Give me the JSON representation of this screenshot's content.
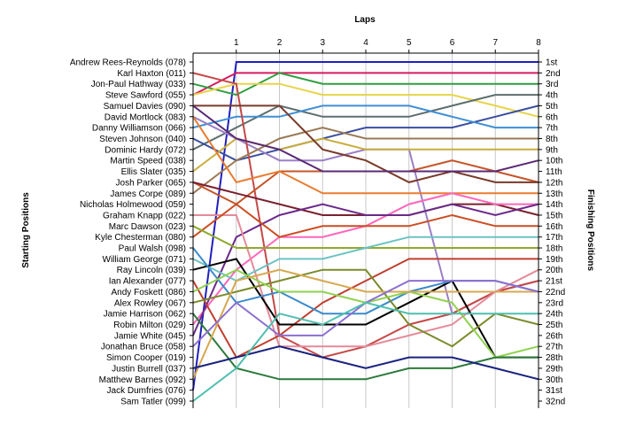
{
  "chart_data": {
    "type": "line",
    "title": "",
    "x_title": "Laps",
    "y_title_left": "Starting Positions",
    "y_title_right": "Finishing Positions",
    "laps": [
      0,
      1,
      2,
      3,
      4,
      5,
      6,
      7,
      8
    ],
    "x_tick_labels": [
      "1",
      "2",
      "3",
      "4",
      "5",
      "6",
      "7",
      "8"
    ],
    "positions_count": 32,
    "starting_labels": [
      "Andrew Rees-Reynolds (078)",
      "Karl Haxton (011)",
      "Jon-Paul Hathway (033)",
      "Steve Sawford (055)",
      "Samuel Davies (090)",
      "David Mortlock (083)",
      "Danny Williamson (066)",
      "Steven Johnson (040)",
      "Dominic Hardy (072)",
      "Martin Speed (038)",
      "Ellis Slater (035)",
      "Josh Parker (065)",
      "James Corpe (089)",
      "Nicholas Holmewood (059)",
      "Graham Knapp (022)",
      "Marc Dawson (023)",
      "Kyle Chesterman (080)",
      "Paul Walsh (098)",
      "William George (071)",
      "Ray Lincoln (039)",
      "Ian Alexander (077)",
      "Andy Foskett (086)",
      "Alex Rowley (067)",
      "Jamie Harrison (062)",
      "Robin Milton (029)",
      "Jamie White (045)",
      "Jonathan Bruce (058)",
      "Simon Cooper (019)",
      "Justin Burrell (037)",
      "Matthew Barnes (092)",
      "Jack Dumfries (076)",
      "Sam Tatler (099)"
    ],
    "finishing_labels": [
      "1st",
      "2nd",
      "3rd",
      "4th",
      "5th",
      "6th",
      "7th",
      "8th",
      "9th",
      "10th",
      "11th",
      "12th",
      "13th",
      "14th",
      "15th",
      "16th",
      "17th",
      "18th",
      "19th",
      "20th",
      "21st",
      "22nd",
      "23rd",
      "24th",
      "25th",
      "26th",
      "27th",
      "28th",
      "29th",
      "30th",
      "31st",
      "32nd"
    ],
    "series": [
      {
        "color": "#1f1fbf",
        "values": [
          31,
          1,
          1,
          1,
          1,
          1,
          1,
          1,
          1
        ]
      },
      {
        "color": "#d81b60",
        "values": [
          4,
          2,
          2,
          2,
          2,
          2,
          2,
          2,
          2
        ]
      },
      {
        "color": "#2e9e3f",
        "values": [
          3,
          4,
          2,
          3,
          3,
          3,
          3,
          3,
          3
        ]
      },
      {
        "color": "#e8d44a",
        "values": [
          4,
          3,
          3,
          4,
          4,
          4,
          4,
          5,
          6
        ]
      },
      {
        "color": "#5c6e6e",
        "values": [
          9,
          7,
          5,
          6,
          6,
          6,
          5,
          4,
          4
        ]
      },
      {
        "color": "#3a4ea0",
        "values": [
          8,
          10,
          9,
          8,
          7,
          7,
          7,
          6,
          5
        ]
      },
      {
        "color": "#3f8fd6",
        "values": [
          7,
          6,
          6,
          5,
          5,
          5,
          6,
          7,
          7
        ]
      },
      {
        "color": "#9b7fc6",
        "values": [
          6,
          8,
          10,
          10,
          9,
          9,
          24,
          22,
          21
        ]
      },
      {
        "color": "#c64848",
        "values": [
          2,
          3,
          26,
          28,
          27,
          25,
          24,
          22,
          21
        ]
      },
      {
        "color": "#c9ad3c",
        "values": [
          11,
          8,
          9,
          8,
          9,
          9,
          9,
          9,
          9
        ]
      },
      {
        "color": "#9a7a55",
        "values": [
          13,
          10,
          8,
          7,
          8,
          8,
          8,
          8,
          8
        ]
      },
      {
        "color": "#c5552a",
        "values": [
          12,
          14,
          11,
          11,
          11,
          11,
          10,
          11,
          12
        ]
      },
      {
        "color": "#7a3a2a",
        "values": [
          5,
          5,
          5,
          9,
          10,
          12,
          11,
          12,
          12
        ]
      },
      {
        "color": "#e87c2f",
        "values": [
          6,
          12,
          11,
          13,
          13,
          13,
          13,
          13,
          13
        ]
      },
      {
        "color": "#5a2a75",
        "values": [
          5,
          8,
          9,
          11,
          11,
          11,
          11,
          11,
          10
        ]
      },
      {
        "color": "#7a2030",
        "values": [
          12,
          13,
          14,
          15,
          15,
          15,
          14,
          14,
          15
        ]
      },
      {
        "color": "#ff66bb",
        "values": [
          25,
          20,
          17,
          17,
          16,
          14,
          13,
          14,
          14
        ]
      },
      {
        "color": "#6b2a8a",
        "values": [
          26,
          17,
          15,
          14,
          15,
          15,
          14,
          15,
          14
        ]
      },
      {
        "color": "#e58a9a",
        "values": [
          15,
          15,
          27,
          27,
          27,
          26,
          25,
          22,
          20
        ]
      },
      {
        "color": "#bf3f30",
        "values": [
          21,
          28,
          26,
          23,
          21,
          19,
          19,
          19,
          19
        ]
      },
      {
        "color": "#cc4d22",
        "values": [
          17,
          14,
          17,
          16,
          16,
          16,
          15,
          16,
          16
        ]
      },
      {
        "color": "#8faa2a",
        "values": [
          16,
          18,
          18,
          18,
          18,
          18,
          18,
          18,
          18
        ]
      },
      {
        "color": "#6ec2c2",
        "values": [
          19,
          21,
          19,
          19,
          18,
          17,
          17,
          17,
          17
        ]
      },
      {
        "color": "#000000",
        "values": [
          20,
          19,
          25,
          25,
          25,
          23,
          21,
          28,
          28
        ]
      },
      {
        "color": "#3a8acc",
        "values": [
          18,
          23,
          22,
          24,
          24,
          22,
          21,
          21,
          22
        ]
      },
      {
        "color": "#7b8a2a",
        "values": [
          23,
          22,
          21,
          20,
          20,
          25,
          27,
          24,
          25
        ]
      },
      {
        "color": "#8fd14f",
        "values": [
          22,
          20,
          22,
          22,
          23,
          22,
          23,
          28,
          27
        ]
      },
      {
        "color": "#2c7a3c",
        "values": [
          24,
          29,
          30,
          30,
          30,
          29,
          29,
          28,
          28
        ]
      },
      {
        "color": "#d6a84f",
        "values": [
          30,
          21,
          20,
          21,
          22,
          22,
          22,
          22,
          22
        ]
      },
      {
        "color": "#8c6fd0",
        "values": [
          27,
          23,
          26,
          26,
          23,
          21,
          21,
          21,
          22
        ]
      },
      {
        "color": "#1a237e",
        "values": [
          29,
          28,
          27,
          28,
          29,
          28,
          28,
          29,
          30
        ]
      },
      {
        "color": "#4dbfae",
        "values": [
          32,
          29,
          24,
          25,
          23,
          24,
          24,
          24,
          24
        ]
      }
    ]
  }
}
